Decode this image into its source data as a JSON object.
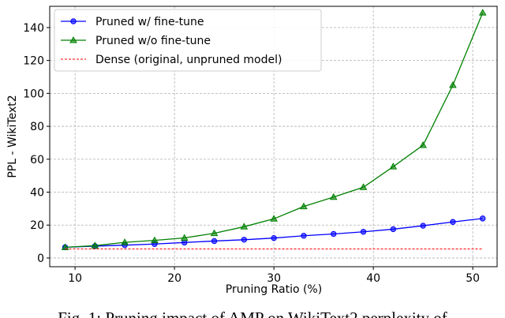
{
  "chart_data": {
    "type": "line",
    "xlabel": "Pruning Ratio (%)",
    "ylabel": "PPL - WikiText2",
    "xlim": [
      7.45,
      52.45
    ],
    "xticks": [
      10,
      20,
      30,
      40,
      50
    ],
    "ylim": [
      -5.3,
      152.9
    ],
    "yticks": [
      0,
      20,
      40,
      60,
      80,
      100,
      120,
      140
    ],
    "grid": true,
    "legend": "upper left",
    "series": [
      {
        "name": "Pruned w/ fine-tune",
        "color": "#0000ff",
        "marker": "circle",
        "linestyle": "solid",
        "x": [
          9,
          12,
          15,
          18,
          21,
          24,
          27,
          30,
          33,
          36,
          39,
          42,
          45,
          48,
          51
        ],
        "values": [
          6.5,
          7.2,
          7.8,
          8.5,
          9.4,
          10.3,
          11.1,
          12.1,
          13.5,
          14.6,
          15.9,
          17.5,
          19.6,
          21.9,
          24.0
        ]
      },
      {
        "name": "Pruned w/o fine-tune",
        "color": "#008000",
        "marker": "triangle",
        "linestyle": "solid",
        "x": [
          9,
          12,
          15,
          18,
          21,
          24,
          27,
          30,
          33,
          36,
          39,
          42,
          45,
          48,
          51
        ],
        "values": [
          6.5,
          7.5,
          9.5,
          10.7,
          12.2,
          15.0,
          19.0,
          23.8,
          31.3,
          37.0,
          43.0,
          55.5,
          68.5,
          105,
          149
        ]
      },
      {
        "name": "Dense (original, unpruned model)",
        "color": "#ff0000",
        "marker": "none",
        "linestyle": "dashed",
        "x": [
          9,
          51
        ],
        "values": [
          5.5,
          5.5
        ]
      }
    ]
  },
  "caption": "Fig. 1: Pruning impact of AMP on WikiText2 perplexity of"
}
